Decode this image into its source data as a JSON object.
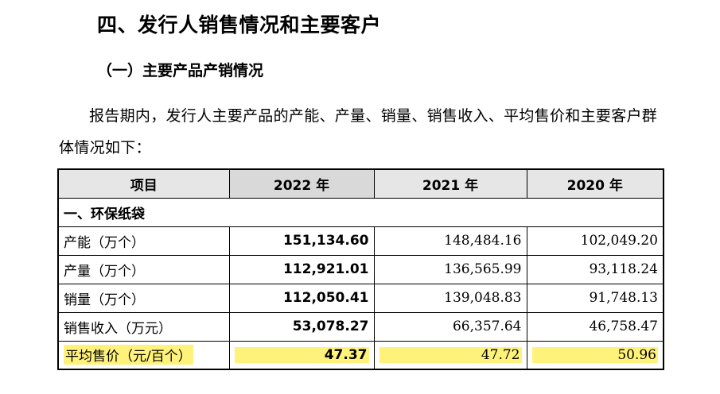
{
  "heading": "四、发行人销售情况和主要客户",
  "subheading": "（一）主要产品产销情况",
  "paragraph": "报告期内，发行人主要产品的产能、产量、销量、销售收入、平均售价和主要客户群体情况如下：",
  "table": {
    "headers": [
      "项目",
      "2022 年",
      "2021 年",
      "2020 年"
    ],
    "section": "一、环保纸袋",
    "rows": [
      {
        "label": "产能（万个）",
        "v2022": "151,134.60",
        "v2021": "148,484.16",
        "v2020": "102,049.20"
      },
      {
        "label": "产量（万个）",
        "v2022": "112,921.01",
        "v2021": "136,565.99",
        "v2020": "93,118.24"
      },
      {
        "label": "销量（万个）",
        "v2022": "112,050.41",
        "v2021": "139,048.83",
        "v2020": "91,748.13"
      },
      {
        "label": "销售收入（万元）",
        "v2022": "53,078.27",
        "v2021": "66,357.64",
        "v2020": "46,758.47"
      },
      {
        "label": "平均售价（元/百个）",
        "v2022": "47.37",
        "v2021": "47.72",
        "v2020": "50.96"
      }
    ]
  },
  "colors": {
    "highlight": "#fff27a",
    "header_bg": "#e6e6e6"
  }
}
